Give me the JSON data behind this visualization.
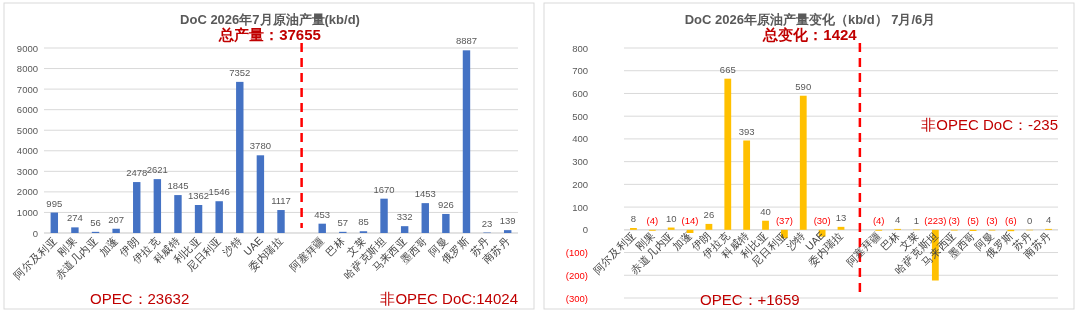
{
  "chart_data": [
    {
      "type": "bar",
      "title": "DoC 2026年7月原油产量(kb/d)",
      "categories": [
        "阿尔及利亚",
        "刚果",
        "赤道几内亚",
        "加蓬",
        "伊朗",
        "伊拉克",
        "科威特",
        "利比亚",
        "尼日利亚",
        "沙特",
        "UAE",
        "委内瑞拉",
        null,
        "阿塞拜疆",
        "巴林",
        "文莱",
        "哈萨克斯坦",
        "马来西亚",
        "墨西哥",
        "阿曼",
        "俄罗斯",
        "苏丹",
        "南苏丹"
      ],
      "values": [
        995,
        274,
        56,
        207,
        2478,
        2621,
        1845,
        1362,
        1546,
        7352,
        3780,
        1117,
        null,
        453,
        57,
        85,
        1670,
        332,
        1453,
        926,
        8887,
        23,
        139
      ],
      "color": "#4472c4",
      "data_labels": true,
      "ylim": [
        0,
        9000
      ],
      "yticks": [
        0,
        1000,
        2000,
        3000,
        4000,
        5000,
        6000,
        7000,
        8000,
        9000
      ],
      "grid": "y",
      "legend": false,
      "annotations": [
        "总产量：37655",
        "OPEC：23632",
        "非OPEC DoC:14024"
      ]
    },
    {
      "type": "bar",
      "title": "DoC 2026年原油产量变化（kb/d） 7月/6月",
      "categories": [
        "阿尔及利亚",
        "刚果",
        "赤道几内亚",
        "加蓬",
        "伊朗",
        "伊拉克",
        "科威特",
        "利比亚",
        "尼日利亚",
        "沙特",
        "UAE",
        "委内瑞拉",
        null,
        "阿塞拜疆",
        "巴林",
        "文莱",
        "哈萨克斯坦",
        "马来西亚",
        "墨西哥",
        "阿曼",
        "俄罗斯",
        "苏丹",
        "南苏丹"
      ],
      "values": [
        8,
        -4,
        10,
        -14,
        26,
        665,
        393,
        40,
        -37,
        590,
        -30,
        13,
        null,
        -4,
        4,
        1,
        -223,
        -3,
        -5,
        -3,
        -6,
        0,
        4
      ],
      "value_labels": [
        "8",
        "(4)",
        "10",
        "(14)",
        "26",
        "665",
        "393",
        "40",
        "(37)",
        "590",
        "(30)",
        "13",
        null,
        "(4)",
        "4",
        "1",
        "(223)",
        "(3)",
        "(5)",
        "(3)",
        "(6)",
        "0",
        "4"
      ],
      "color": "#ffc000",
      "ylim": [
        -300,
        800
      ],
      "yticks": [
        {
          "value": -300,
          "label": "(300)"
        },
        {
          "value": -200,
          "label": "(200)"
        },
        {
          "value": -100,
          "label": "(100)"
        },
        0,
        100,
        200,
        300,
        400,
        500,
        600,
        700,
        800
      ],
      "grid": "y",
      "legend": false,
      "annotations": [
        "总变化：1424",
        "OPEC：+1659",
        "非OPEC DoC：-235"
      ]
    }
  ]
}
